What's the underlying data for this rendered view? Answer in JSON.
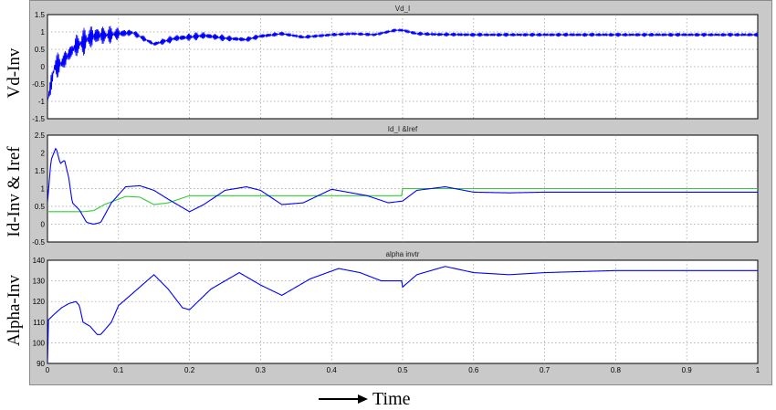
{
  "figure": {
    "ylabels": [
      "Vd-Inv",
      "Id-Inv & Iref",
      "Alpha-Inv"
    ],
    "xlabel": "Time",
    "colors": {
      "trace_blue": "#0000ff",
      "trace_green": "#33cc33",
      "panel_bg": "#ffffff",
      "frame_bg": "#c9c9c9",
      "grid": "#9a9a9a"
    }
  },
  "chart_data": [
    {
      "type": "line",
      "title": "Vd_I",
      "xlim": [
        0,
        1
      ],
      "ylim": [
        -1.5,
        1.5
      ],
      "xticks": [
        0,
        0.1,
        0.2,
        0.3,
        0.4,
        0.5,
        0.6,
        0.7,
        0.8,
        0.9,
        1
      ],
      "yticks": [
        -1.5,
        -1,
        -0.5,
        0,
        0.5,
        1,
        1.5
      ],
      "ytick_labels": [
        "-1.5",
        "-1",
        "-0.5",
        "0",
        "0.5",
        "1",
        "1.5"
      ],
      "grid": true,
      "series": [
        {
          "color": "#0000ff",
          "style": "oscillating",
          "x": [
            0,
            0.005,
            0.01,
            0.02,
            0.03,
            0.04,
            0.05,
            0.06,
            0.07,
            0.08,
            0.1,
            0.12,
            0.15,
            0.18,
            0.2,
            0.22,
            0.25,
            0.28,
            0.3,
            0.33,
            0.36,
            0.4,
            0.43,
            0.46,
            0.49,
            0.5,
            0.52,
            0.55,
            0.6,
            0.7,
            0.8,
            0.9,
            1
          ],
          "y": [
            -1.0,
            -0.5,
            0.0,
            0.1,
            0.35,
            0.6,
            0.7,
            0.85,
            0.9,
            0.9,
            0.95,
            0.98,
            0.65,
            0.82,
            0.85,
            0.9,
            0.82,
            0.78,
            0.88,
            0.95,
            0.85,
            0.92,
            0.95,
            0.92,
            1.05,
            1.05,
            0.95,
            0.93,
            0.92,
            0.92,
            0.92,
            0.92,
            0.92
          ],
          "amp": [
            0,
            0.3,
            0.4,
            0.35,
            0.3,
            0.35,
            0.4,
            0.4,
            0.35,
            0.3,
            0.2,
            0.1,
            0.08,
            0.12,
            0.12,
            0.12,
            0.1,
            0.08,
            0.08,
            0.06,
            0.06,
            0.05,
            0.05,
            0.05,
            0.05,
            0.05,
            0.06,
            0.06,
            0.06,
            0.06,
            0.06,
            0.06,
            0.06
          ]
        }
      ]
    },
    {
      "type": "line",
      "title": "Id_I &Iref",
      "xlim": [
        0,
        1
      ],
      "ylim": [
        -0.5,
        2.5
      ],
      "xticks": [
        0,
        0.1,
        0.2,
        0.3,
        0.4,
        0.5,
        0.6,
        0.7,
        0.8,
        0.9,
        1
      ],
      "yticks": [
        -0.5,
        0,
        0.5,
        1,
        1.5,
        2,
        2.5
      ],
      "ytick_labels": [
        "-0.5",
        "0",
        "0.5",
        "1",
        "1.5",
        "2",
        "2.5"
      ],
      "grid": true,
      "series": [
        {
          "color": "#0000ff",
          "x": [
            0,
            0.005,
            0.012,
            0.018,
            0.024,
            0.03,
            0.035,
            0.045,
            0.055,
            0.065,
            0.075,
            0.09,
            0.11,
            0.13,
            0.15,
            0.17,
            0.2,
            0.22,
            0.25,
            0.28,
            0.3,
            0.33,
            0.36,
            0.4,
            0.45,
            0.48,
            0.5,
            0.52,
            0.56,
            0.6,
            0.65,
            0.7,
            0.8,
            0.9,
            1
          ],
          "y": [
            0.6,
            1.8,
            2.15,
            1.7,
            1.8,
            1.3,
            0.6,
            0.4,
            0.05,
            0.0,
            0.05,
            0.6,
            1.05,
            1.08,
            0.95,
            0.7,
            0.35,
            0.55,
            0.95,
            1.05,
            0.95,
            0.55,
            0.6,
            0.98,
            0.8,
            0.6,
            0.65,
            0.95,
            1.05,
            0.9,
            0.88,
            0.9,
            0.9,
            0.9,
            0.9
          ]
        },
        {
          "color": "#33cc33",
          "x": [
            0,
            0.05,
            0.065,
            0.08,
            0.1,
            0.11,
            0.13,
            0.15,
            0.17,
            0.2,
            0.25,
            0.3,
            0.35,
            0.4,
            0.45,
            0.499,
            0.5,
            0.6,
            0.7,
            0.8,
            0.9,
            1
          ],
          "y": [
            0.35,
            0.35,
            0.38,
            0.55,
            0.7,
            0.78,
            0.76,
            0.55,
            0.6,
            0.8,
            0.8,
            0.8,
            0.8,
            0.8,
            0.8,
            0.8,
            1.0,
            1.0,
            1.0,
            1.0,
            1.0,
            1.0
          ]
        }
      ]
    },
    {
      "type": "line",
      "title": "alpha invtr",
      "xlim": [
        0,
        1
      ],
      "ylim": [
        90,
        140
      ],
      "xticks": [
        0,
        0.1,
        0.2,
        0.3,
        0.4,
        0.5,
        0.6,
        0.7,
        0.8,
        0.9,
        1
      ],
      "xtick_labels": [
        "0",
        "0.1",
        "0.2",
        "0.3",
        "0.4",
        "0.5",
        "0.6",
        "0.7",
        "0.8",
        "0.9",
        "1"
      ],
      "yticks": [
        90,
        100,
        110,
        120,
        130,
        140
      ],
      "ytick_labels": [
        "90",
        "100",
        "110",
        "120",
        "130",
        "140"
      ],
      "grid": true,
      "series": [
        {
          "color": "#0000ff",
          "x": [
            0,
            0.001,
            0.01,
            0.02,
            0.03,
            0.04,
            0.045,
            0.05,
            0.06,
            0.07,
            0.075,
            0.09,
            0.1,
            0.12,
            0.15,
            0.17,
            0.19,
            0.2,
            0.23,
            0.27,
            0.3,
            0.33,
            0.37,
            0.41,
            0.44,
            0.47,
            0.499,
            0.5,
            0.52,
            0.56,
            0.6,
            0.65,
            0.7,
            0.8,
            0.9,
            1
          ],
          "y": [
            90,
            111,
            114,
            117,
            119,
            120,
            118,
            110,
            108,
            104,
            104,
            110,
            118,
            124,
            133,
            126,
            117,
            116,
            126,
            134,
            128,
            123,
            131,
            136,
            134,
            130,
            130,
            127,
            133,
            137,
            134,
            133,
            134,
            135,
            135,
            135
          ]
        }
      ]
    }
  ]
}
